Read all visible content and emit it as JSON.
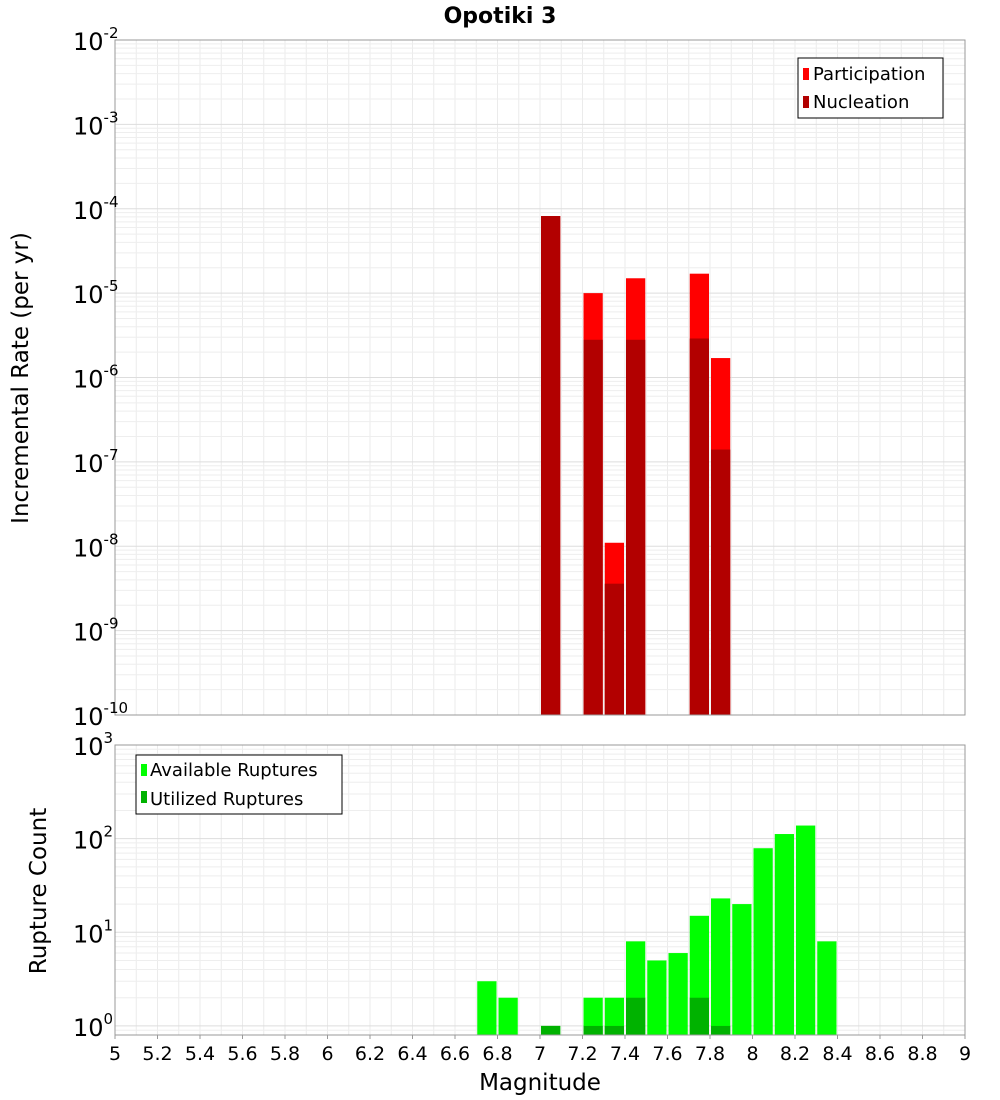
{
  "chart_data": [
    {
      "type": "bar",
      "title": "Opotiki 3",
      "xlabel": "",
      "ylabel": "Incremental Rate (per yr)",
      "xlim": [
        5,
        9
      ],
      "ylim": [
        1e-10,
        0.01
      ],
      "yscale": "log",
      "bin_width": 0.1,
      "grid": true,
      "legend_position": "top-right",
      "y_tick_exponents": [
        -10,
        -9,
        -8,
        -7,
        -6,
        -5,
        -4,
        -3,
        -2
      ],
      "y_tick_base": "10",
      "series": [
        {
          "name": "Participation",
          "color": "#ff0000",
          "x": [
            7.05,
            7.25,
            7.35,
            7.45,
            7.75,
            7.85
          ],
          "values": [
            8.2e-05,
            1e-05,
            1.1e-08,
            1.5e-05,
            1.7e-05,
            1.7e-06
          ]
        },
        {
          "name": "Nucleation",
          "color": "#b20000",
          "x": [
            7.05,
            7.25,
            7.35,
            7.45,
            7.75,
            7.85
          ],
          "values": [
            8.2e-05,
            2.8e-06,
            3.6e-09,
            2.8e-06,
            2.9e-06,
            1.4e-07
          ]
        }
      ]
    },
    {
      "type": "bar",
      "title": "",
      "xlabel": "Magnitude",
      "ylabel": "Rupture Count",
      "xlim": [
        5,
        9
      ],
      "ylim": [
        0.8,
        1000
      ],
      "yscale": "log",
      "bin_width": 0.1,
      "grid": true,
      "legend_position": "top-left",
      "x_ticks": [
        "5",
        "5.2",
        "5.4",
        "5.6",
        "5.8",
        "6",
        "6.2",
        "6.4",
        "6.6",
        "6.8",
        "7",
        "7.2",
        "7.4",
        "7.6",
        "7.8",
        "8",
        "8.2",
        "8.4",
        "8.6",
        "8.8",
        "9"
      ],
      "y_tick_exponents": [
        0,
        1,
        2,
        3
      ],
      "y_tick_base": "10",
      "series": [
        {
          "name": "Available Ruptures",
          "color": "#00ff00",
          "x": [
            6.75,
            6.85,
            7.05,
            7.25,
            7.35,
            7.45,
            7.55,
            7.65,
            7.75,
            7.85,
            7.95,
            8.05,
            8.15,
            8.25,
            8.35
          ],
          "values": [
            3,
            2,
            1,
            2,
            2,
            8,
            5,
            6,
            15,
            23,
            20,
            79,
            112,
            138,
            8
          ]
        },
        {
          "name": "Utilized Ruptures",
          "color": "#00b200",
          "x": [
            7.05,
            7.25,
            7.35,
            7.45,
            7.75,
            7.85
          ],
          "values": [
            1,
            1,
            1,
            2,
            2,
            1
          ]
        }
      ]
    }
  ]
}
